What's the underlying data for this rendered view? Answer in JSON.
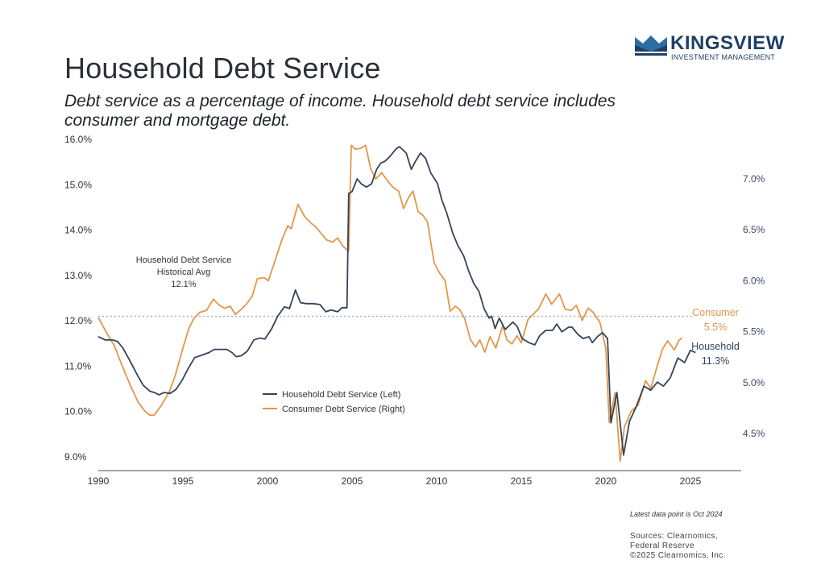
{
  "header": {
    "title": "Household Debt Service",
    "subtitle": "Debt service as a percentage of income. Household debt service includes consumer and mortgage debt."
  },
  "logo": {
    "name": "KINGSVIEW",
    "tagline": "INVESTMENT MANAGEMENT",
    "icon": "crown-icon",
    "color": "#1f3f64",
    "accent": "#2e6da4"
  },
  "footer": {
    "note": "Latest data point is Oct 2024",
    "sources": [
      "Sources: Clearnomics,",
      "Federal Reserve",
      "©2025 Clearnomics, Inc."
    ]
  },
  "chart_data": {
    "type": "line",
    "title": "Household Debt Service",
    "xlabel": "",
    "ylabel_left": "",
    "ylabel_right": "",
    "xlim": [
      1990,
      2028
    ],
    "x_ticks": [
      "1990",
      "1995",
      "2000",
      "2005",
      "2010",
      "2015",
      "2020",
      "2025"
    ],
    "ylim_left": [
      8.75,
      16.0
    ],
    "y_ticks_left": [
      "16.0%",
      "15.0%",
      "14.0%",
      "13.0%",
      "12.0%",
      "11.0%",
      "10.0%",
      "9.0%"
    ],
    "ylim_right": [
      4.25,
      7.2
    ],
    "y_ticks_right": [
      "7.0%",
      "6.5%",
      "6.0%",
      "5.5%",
      "5.0%",
      "4.5%"
    ],
    "grid": false,
    "legend": {
      "position": "center",
      "entries": [
        "Household Debt Service (Left)",
        "Consumer Debt Service (Right)"
      ]
    },
    "reference_line": {
      "value": 12.1,
      "axis": "left",
      "label": [
        "Household Debt Service",
        "Historical Avg",
        "12.1%"
      ]
    },
    "end_labels": [
      {
        "series": "Consumer Debt Service (Right)",
        "text": [
          "Consumer",
          "5.5%"
        ]
      },
      {
        "series": "Household Debt Service (Left)",
        "text": [
          "Household",
          "11.3%"
        ]
      }
    ],
    "series": [
      {
        "name": "Household Debt Service (Left)",
        "axis": "left",
        "color": "#34445a",
        "points": [
          [
            1990.0,
            11.65
          ],
          [
            1990.4,
            11.58
          ],
          [
            1990.85,
            11.58
          ],
          [
            1991.15,
            11.54
          ],
          [
            1991.45,
            11.4
          ],
          [
            1991.8,
            11.17
          ],
          [
            1992.3,
            10.81
          ],
          [
            1992.65,
            10.58
          ],
          [
            1993.05,
            10.45
          ],
          [
            1993.3,
            10.42
          ],
          [
            1993.6,
            10.37
          ],
          [
            1993.9,
            10.42
          ],
          [
            1994.25,
            10.4
          ],
          [
            1994.6,
            10.49
          ],
          [
            1994.95,
            10.69
          ],
          [
            1995.35,
            10.97
          ],
          [
            1995.7,
            11.19
          ],
          [
            1996.1,
            11.24
          ],
          [
            1996.55,
            11.3
          ],
          [
            1996.85,
            11.37
          ],
          [
            1997.2,
            11.37
          ],
          [
            1997.6,
            11.37
          ],
          [
            1997.9,
            11.3
          ],
          [
            1998.15,
            11.21
          ],
          [
            1998.45,
            11.23
          ],
          [
            1998.8,
            11.33
          ],
          [
            1999.2,
            11.58
          ],
          [
            1999.55,
            11.62
          ],
          [
            1999.85,
            11.6
          ],
          [
            2000.25,
            11.83
          ],
          [
            2000.6,
            12.1
          ],
          [
            2001.0,
            12.31
          ],
          [
            2001.3,
            12.27
          ],
          [
            2001.65,
            12.68
          ],
          [
            2001.95,
            12.4
          ],
          [
            2002.3,
            12.38
          ],
          [
            2002.7,
            12.38
          ],
          [
            2003.1,
            12.36
          ],
          [
            2003.45,
            12.2
          ],
          [
            2003.75,
            12.24
          ],
          [
            2004.15,
            12.2
          ],
          [
            2004.4,
            12.29
          ],
          [
            2004.7,
            12.29
          ],
          [
            2004.8,
            14.81
          ],
          [
            2005.0,
            14.85
          ],
          [
            2005.3,
            15.13
          ],
          [
            2005.55,
            15.02
          ],
          [
            2005.85,
            14.95
          ],
          [
            2006.15,
            15.02
          ],
          [
            2006.45,
            15.34
          ],
          [
            2006.7,
            15.48
          ],
          [
            2006.95,
            15.52
          ],
          [
            2007.25,
            15.63
          ],
          [
            2007.6,
            15.79
          ],
          [
            2007.8,
            15.84
          ],
          [
            2008.2,
            15.7
          ],
          [
            2008.5,
            15.34
          ],
          [
            2008.75,
            15.52
          ],
          [
            2009.05,
            15.7
          ],
          [
            2009.35,
            15.58
          ],
          [
            2009.65,
            15.26
          ],
          [
            2010.05,
            15.03
          ],
          [
            2010.3,
            14.67
          ],
          [
            2010.6,
            14.37
          ],
          [
            2010.95,
            13.93
          ],
          [
            2011.25,
            13.66
          ],
          [
            2011.6,
            13.43
          ],
          [
            2011.9,
            13.09
          ],
          [
            2012.2,
            12.82
          ],
          [
            2012.5,
            12.65
          ],
          [
            2012.8,
            12.27
          ],
          [
            2013.1,
            12.06
          ],
          [
            2013.25,
            12.1
          ],
          [
            2013.45,
            11.83
          ],
          [
            2013.7,
            12.06
          ],
          [
            2014.05,
            11.81
          ],
          [
            2014.5,
            11.97
          ],
          [
            2014.75,
            11.88
          ],
          [
            2015.05,
            11.61
          ],
          [
            2015.45,
            11.52
          ],
          [
            2015.8,
            11.47
          ],
          [
            2016.1,
            11.68
          ],
          [
            2016.45,
            11.79
          ],
          [
            2016.85,
            11.79
          ],
          [
            2017.1,
            11.93
          ],
          [
            2017.4,
            11.76
          ],
          [
            2017.8,
            11.86
          ],
          [
            2018.0,
            11.86
          ],
          [
            2018.35,
            11.7
          ],
          [
            2018.65,
            11.61
          ],
          [
            2019.0,
            11.65
          ],
          [
            2019.2,
            11.52
          ],
          [
            2019.5,
            11.65
          ],
          [
            2019.8,
            11.74
          ],
          [
            2020.1,
            11.61
          ],
          [
            2020.3,
            9.75
          ],
          [
            2020.65,
            10.42
          ],
          [
            2021.05,
            9.04
          ],
          [
            2021.4,
            9.79
          ],
          [
            2021.8,
            10.11
          ],
          [
            2022.25,
            10.56
          ],
          [
            2022.65,
            10.47
          ],
          [
            2023.05,
            10.65
          ],
          [
            2023.4,
            10.56
          ],
          [
            2023.8,
            10.74
          ],
          [
            2024.25,
            11.18
          ],
          [
            2024.65,
            11.08
          ],
          [
            2025.0,
            11.35
          ],
          [
            2025.3,
            11.3
          ]
        ]
      },
      {
        "name": "Consumer Debt Service (Right)",
        "axis": "right",
        "color": "#e3964a",
        "points": [
          [
            1990.0,
            5.64
          ],
          [
            1990.45,
            5.5
          ],
          [
            1990.95,
            5.36
          ],
          [
            1991.4,
            5.17
          ],
          [
            1991.9,
            4.97
          ],
          [
            1992.35,
            4.81
          ],
          [
            1992.75,
            4.72
          ],
          [
            1993.05,
            4.68
          ],
          [
            1993.3,
            4.68
          ],
          [
            1993.7,
            4.77
          ],
          [
            1994.2,
            4.91
          ],
          [
            1994.55,
            5.07
          ],
          [
            1994.95,
            5.31
          ],
          [
            1995.35,
            5.53
          ],
          [
            1995.65,
            5.63
          ],
          [
            1996.0,
            5.69
          ],
          [
            1996.4,
            5.71
          ],
          [
            1996.8,
            5.82
          ],
          [
            1997.15,
            5.76
          ],
          [
            1997.45,
            5.73
          ],
          [
            1997.8,
            5.75
          ],
          [
            1998.1,
            5.67
          ],
          [
            1998.45,
            5.72
          ],
          [
            1998.75,
            5.77
          ],
          [
            1999.1,
            5.85
          ],
          [
            1999.4,
            6.02
          ],
          [
            1999.8,
            6.03
          ],
          [
            2000.05,
            6.0
          ],
          [
            2000.45,
            6.2
          ],
          [
            2000.85,
            6.4
          ],
          [
            2001.2,
            6.54
          ],
          [
            2001.4,
            6.51
          ],
          [
            2001.8,
            6.75
          ],
          [
            2002.2,
            6.63
          ],
          [
            2002.55,
            6.57
          ],
          [
            2002.85,
            6.53
          ],
          [
            2003.2,
            6.46
          ],
          [
            2003.5,
            6.4
          ],
          [
            2003.85,
            6.38
          ],
          [
            2004.15,
            6.42
          ],
          [
            2004.45,
            6.34
          ],
          [
            2004.8,
            6.29
          ],
          [
            2004.95,
            7.33
          ],
          [
            2005.2,
            7.29
          ],
          [
            2005.5,
            7.3
          ],
          [
            2005.8,
            7.33
          ],
          [
            2006.1,
            7.1
          ],
          [
            2006.4,
            7.0
          ],
          [
            2006.75,
            7.06
          ],
          [
            2007.1,
            6.98
          ],
          [
            2007.4,
            6.92
          ],
          [
            2007.75,
            6.88
          ],
          [
            2008.05,
            6.71
          ],
          [
            2008.35,
            6.82
          ],
          [
            2008.6,
            6.88
          ],
          [
            2008.9,
            6.68
          ],
          [
            2009.2,
            6.64
          ],
          [
            2009.45,
            6.58
          ],
          [
            2009.85,
            6.18
          ],
          [
            2010.15,
            6.08
          ],
          [
            2010.5,
            6.0
          ],
          [
            2010.8,
            5.7
          ],
          [
            2011.1,
            5.75
          ],
          [
            2011.35,
            5.72
          ],
          [
            2011.65,
            5.63
          ],
          [
            2012.0,
            5.42
          ],
          [
            2012.3,
            5.35
          ],
          [
            2012.55,
            5.42
          ],
          [
            2012.85,
            5.3
          ],
          [
            2013.15,
            5.45
          ],
          [
            2013.5,
            5.34
          ],
          [
            2013.9,
            5.56
          ],
          [
            2014.15,
            5.42
          ],
          [
            2014.45,
            5.38
          ],
          [
            2014.75,
            5.46
          ],
          [
            2015.0,
            5.39
          ],
          [
            2015.4,
            5.62
          ],
          [
            2015.7,
            5.67
          ],
          [
            2016.05,
            5.73
          ],
          [
            2016.45,
            5.87
          ],
          [
            2016.8,
            5.77
          ],
          [
            2017.25,
            5.87
          ],
          [
            2017.6,
            5.72
          ],
          [
            2017.95,
            5.71
          ],
          [
            2018.25,
            5.76
          ],
          [
            2018.6,
            5.61
          ],
          [
            2018.95,
            5.73
          ],
          [
            2019.25,
            5.69
          ],
          [
            2019.65,
            5.59
          ],
          [
            2020.0,
            5.33
          ],
          [
            2020.2,
            4.61
          ],
          [
            2020.55,
            4.9
          ],
          [
            2020.85,
            4.23
          ],
          [
            2021.1,
            4.57
          ],
          [
            2021.5,
            4.72
          ],
          [
            2021.9,
            4.78
          ],
          [
            2022.35,
            5.02
          ],
          [
            2022.65,
            4.94
          ],
          [
            2023.05,
            5.17
          ],
          [
            2023.35,
            5.33
          ],
          [
            2023.65,
            5.41
          ],
          [
            2024.05,
            5.32
          ],
          [
            2024.3,
            5.41
          ],
          [
            2024.5,
            5.44
          ]
        ]
      }
    ]
  }
}
